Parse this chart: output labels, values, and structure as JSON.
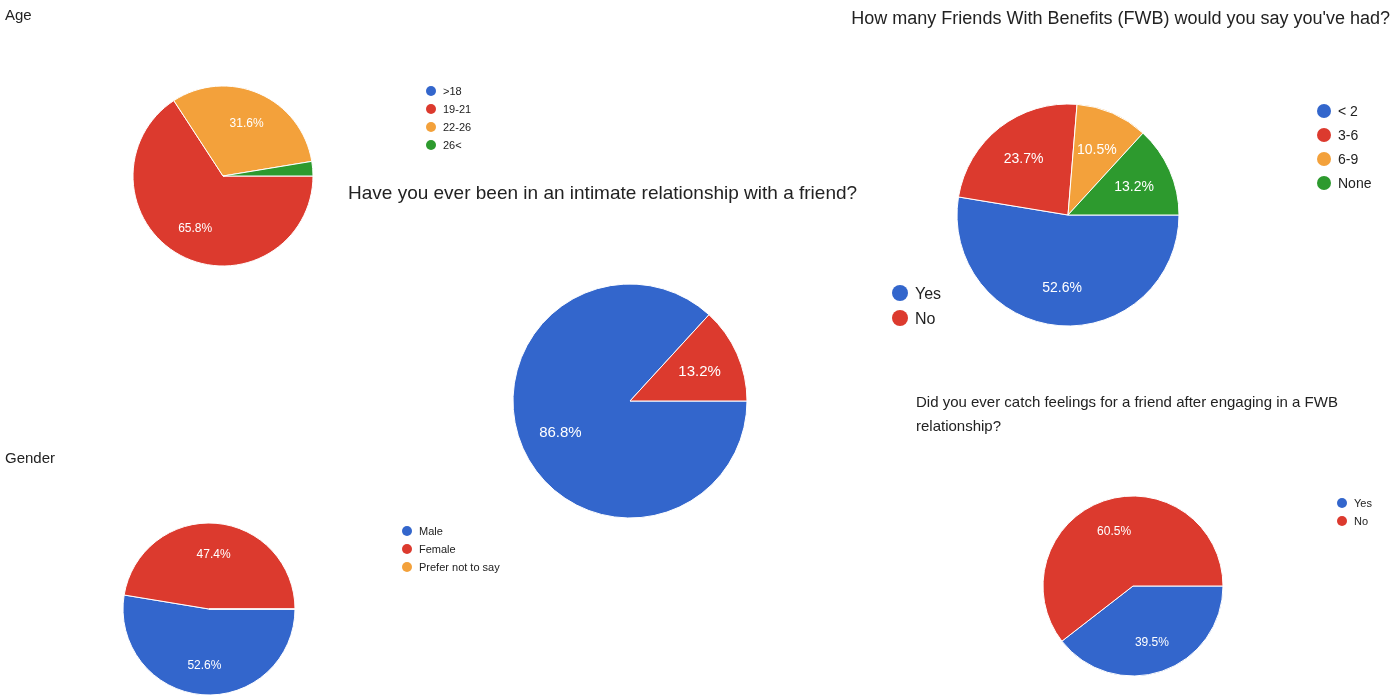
{
  "chart_data": [
    {
      "type": "pie",
      "title": "Age",
      "categories": [
        ">18",
        "19-21",
        "22-26",
        "26<"
      ],
      "values": [
        0,
        65.8,
        31.6,
        2.6
      ],
      "colors": [
        "#3366cc",
        "#dc3a2e",
        "#f3a13b",
        "#2d9a2e"
      ],
      "value_labels": [
        null,
        "65.8%",
        "31.6%",
        null
      ],
      "legend": "right"
    },
    {
      "type": "pie",
      "title": "How many Friends With Benefits (FWB) would you say you've had?",
      "categories": [
        "< 2",
        "3-6",
        "6-9",
        "None"
      ],
      "values": [
        52.6,
        23.7,
        10.5,
        13.2
      ],
      "colors": [
        "#3366cc",
        "#dc3a2e",
        "#f3a13b",
        "#2d9a2e"
      ],
      "value_labels": [
        "52.6%",
        "23.7%",
        "10.5%",
        "13.2%"
      ],
      "legend": "right"
    },
    {
      "type": "pie",
      "title": "Have you ever been in an intimate relationship with a friend?",
      "categories": [
        "Yes",
        "No"
      ],
      "values": [
        86.8,
        13.2
      ],
      "colors": [
        "#3366cc",
        "#dc3a2e"
      ],
      "value_labels": [
        "86.8%",
        "13.2%"
      ],
      "legend": "right"
    },
    {
      "type": "pie",
      "title": "Gender",
      "categories": [
        "Male",
        "Female",
        "Prefer not to say"
      ],
      "values": [
        52.6,
        47.4,
        0
      ],
      "colors": [
        "#3366cc",
        "#dc3a2e",
        "#f3a13b"
      ],
      "value_labels": [
        "52.6%",
        "47.4%",
        null
      ],
      "legend": "right"
    },
    {
      "type": "pie",
      "title": "Did you ever catch feelings for a friend after engaging in a FWB relationship?",
      "categories": [
        "Yes",
        "No"
      ],
      "values": [
        39.5,
        60.5
      ],
      "colors": [
        "#3366cc",
        "#dc3a2e"
      ],
      "value_labels": [
        "39.5%",
        "60.5%"
      ],
      "legend": "top right"
    }
  ]
}
